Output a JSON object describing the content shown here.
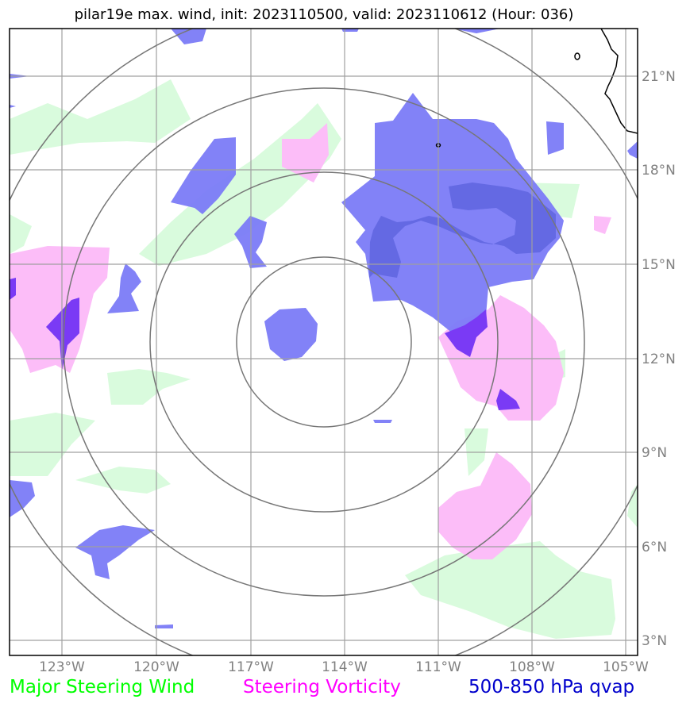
{
  "title": "pilar19e max. wind, init: 2023110500, valid: 2023110612 (Hour: 036)",
  "lon_labels": [
    "123°W",
    "120°W",
    "117°W",
    "114°W",
    "111°W",
    "108°W",
    "105°W"
  ],
  "lat_labels": [
    "21°N",
    "18°N",
    "15°N",
    "12°N",
    "9°N",
    "6°N",
    "3°N"
  ],
  "legend": {
    "wind": "Major Steering Wind",
    "vorticity": "Steering Vorticity",
    "qvap": "500-850 hPa qvap"
  },
  "colors": {
    "wind_fill": "#d9fbdd",
    "vorticity_fill": "#fcbdf8",
    "qvap_fill": "#7b7bf7",
    "overlap_fill": "#7a3af5",
    "wind_text": "#00ff00",
    "vorticity_text": "#ff00ff",
    "qvap_text": "#0000cc",
    "grid": "#a0a0a0",
    "range_rings": "#777777"
  },
  "map_extent": {
    "lon_min": "124.7°W",
    "lon_max": "104.6°W",
    "lat_min": "2.5°N",
    "lat_max": "22.5°N"
  }
}
